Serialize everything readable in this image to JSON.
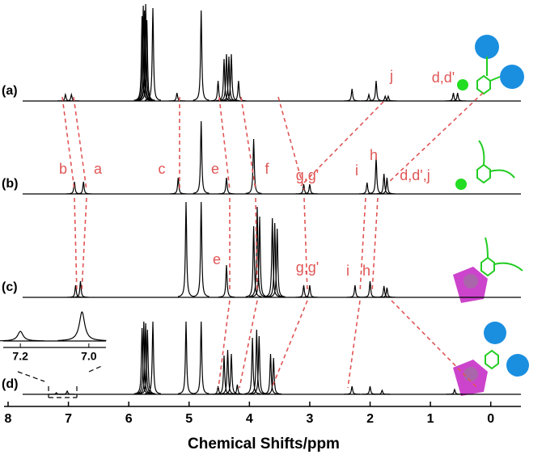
{
  "chart_data": {
    "type": "nmr",
    "xlabel": "Chemical Shifts/ppm",
    "xlim": [
      8,
      -0.5
    ],
    "xticks": [
      8,
      7,
      6,
      5,
      4,
      3,
      2,
      1,
      0
    ],
    "line_color": "#000000",
    "label_color": "#e05555",
    "series": [
      {
        "name": "(a)",
        "labels": [
          "j",
          "d,d'"
        ],
        "peaks": [
          {
            "ppm": 7.05,
            "height": 8
          },
          {
            "ppm": 6.95,
            "height": 8
          },
          {
            "ppm": 5.78,
            "height": 105
          },
          {
            "ppm": 5.76,
            "height": 118
          },
          {
            "ppm": 5.74,
            "height": 112
          },
          {
            "ppm": 5.72,
            "height": 120
          },
          {
            "ppm": 5.7,
            "height": 100
          },
          {
            "ppm": 5.6,
            "height": 115
          },
          {
            "ppm": 5.2,
            "height": 10
          },
          {
            "ppm": 4.8,
            "height": 112
          },
          {
            "ppm": 4.52,
            "height": 25
          },
          {
            "ppm": 4.42,
            "height": 52
          },
          {
            "ppm": 4.38,
            "height": 58
          },
          {
            "ppm": 4.34,
            "height": 55
          },
          {
            "ppm": 4.3,
            "height": 58
          },
          {
            "ppm": 4.18,
            "height": 25
          },
          {
            "ppm": 2.3,
            "height": 15
          },
          {
            "ppm": 2.02,
            "height": 8
          },
          {
            "ppm": 1.9,
            "height": 25
          },
          {
            "ppm": 1.75,
            "height": 6
          },
          {
            "ppm": 1.7,
            "height": 6
          },
          {
            "ppm": 0.62,
            "height": 10
          },
          {
            "ppm": 0.55,
            "height": 10
          }
        ]
      },
      {
        "name": "(b)",
        "labels": [
          "b",
          "a",
          "c",
          "e",
          "f",
          "g,g'",
          "i",
          "h",
          "d,d',j"
        ],
        "peaks": [
          {
            "ppm": 6.9,
            "height": 15
          },
          {
            "ppm": 6.75,
            "height": 15
          },
          {
            "ppm": 5.18,
            "height": 20
          },
          {
            "ppm": 4.8,
            "height": 90
          },
          {
            "ppm": 4.38,
            "height": 20
          },
          {
            "ppm": 3.93,
            "height": 68
          },
          {
            "ppm": 3.1,
            "height": 12
          },
          {
            "ppm": 3.0,
            "height": 12
          },
          {
            "ppm": 2.05,
            "height": 14
          },
          {
            "ppm": 1.9,
            "height": 45
          },
          {
            "ppm": 1.77,
            "height": 25
          },
          {
            "ppm": 1.72,
            "height": 20
          }
        ]
      },
      {
        "name": "(c)",
        "labels": [
          "e",
          "g,g'",
          "i",
          "h"
        ],
        "peaks": [
          {
            "ppm": 6.88,
            "height": 15
          },
          {
            "ppm": 6.8,
            "height": 20
          },
          {
            "ppm": 5.05,
            "height": 118
          },
          {
            "ppm": 4.8,
            "height": 118
          },
          {
            "ppm": 4.38,
            "height": 40
          },
          {
            "ppm": 3.93,
            "height": 88
          },
          {
            "ppm": 3.87,
            "height": 112
          },
          {
            "ppm": 3.83,
            "height": 100
          },
          {
            "ppm": 3.62,
            "height": 98
          },
          {
            "ppm": 3.58,
            "height": 92
          },
          {
            "ppm": 3.54,
            "height": 85
          },
          {
            "ppm": 3.1,
            "height": 15
          },
          {
            "ppm": 3.0,
            "height": 15
          },
          {
            "ppm": 2.25,
            "height": 15
          },
          {
            "ppm": 2.0,
            "height": 20
          },
          {
            "ppm": 1.77,
            "height": 14
          },
          {
            "ppm": 1.72,
            "height": 12
          }
        ]
      },
      {
        "name": "(d)",
        "labels": [],
        "peaks": [
          {
            "ppm": 7.2,
            "height": 2
          },
          {
            "ppm": 7.02,
            "height": 4
          },
          {
            "ppm": 5.78,
            "height": 82
          },
          {
            "ppm": 5.75,
            "height": 90
          },
          {
            "ppm": 5.72,
            "height": 88
          },
          {
            "ppm": 5.69,
            "height": 80
          },
          {
            "ppm": 5.6,
            "height": 90
          },
          {
            "ppm": 5.05,
            "height": 90
          },
          {
            "ppm": 4.8,
            "height": 90
          },
          {
            "ppm": 4.52,
            "height": 10
          },
          {
            "ppm": 4.42,
            "height": 48
          },
          {
            "ppm": 4.36,
            "height": 55
          },
          {
            "ppm": 4.3,
            "height": 50
          },
          {
            "ppm": 4.2,
            "height": 12
          },
          {
            "ppm": 3.95,
            "height": 70
          },
          {
            "ppm": 3.88,
            "height": 80
          },
          {
            "ppm": 3.84,
            "height": 72
          },
          {
            "ppm": 3.65,
            "height": 50
          },
          {
            "ppm": 3.6,
            "height": 45
          },
          {
            "ppm": 2.3,
            "height": 10
          },
          {
            "ppm": 2.0,
            "height": 10
          },
          {
            "ppm": 1.8,
            "height": 5
          },
          {
            "ppm": 0.6,
            "height": 6
          }
        ]
      }
    ],
    "inset": {
      "xlim": [
        7.25,
        6.95
      ],
      "xticks": [
        {
          "value": 7.2,
          "label": "7.2"
        },
        {
          "value": 7,
          "label": "7.0"
        }
      ],
      "peaks": [
        {
          "ppm": 7.2,
          "height": 12
        },
        {
          "ppm": 7.02,
          "height": 36
        }
      ]
    }
  }
}
